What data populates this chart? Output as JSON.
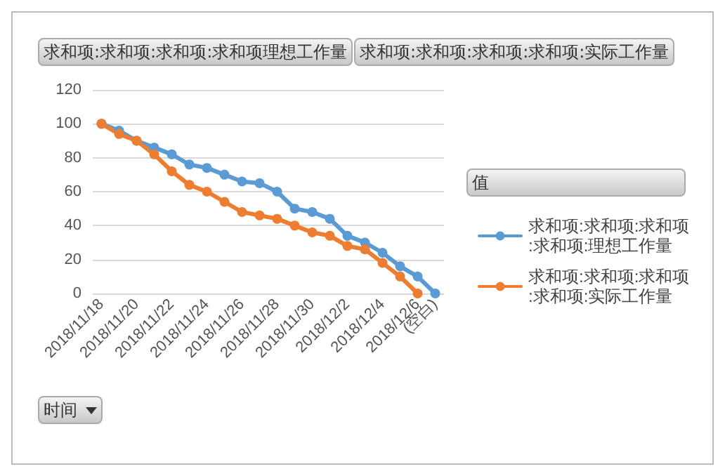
{
  "chart_data": {
    "type": "line",
    "xlabel": "时间",
    "legend_title": "值",
    "annotations": [
      "求和项:求和项:求和项:求和项理想工作量",
      "求和项:求和项:求和项:求和项:实际工作量"
    ],
    "categories": [
      "2018/11/18",
      null,
      "2018/11/20",
      null,
      "2018/11/22",
      null,
      "2018/11/24",
      null,
      "2018/11/26",
      null,
      "2018/11/28",
      null,
      "2018/11/30",
      null,
      "2018/12/2",
      null,
      "2018/12/4",
      null,
      "2018/12/6",
      "(空白)"
    ],
    "series": [
      {
        "name": "求和项:求和项:求和项:求和项:理想工作量",
        "color": "#5b9bd5",
        "values": [
          100,
          96,
          90,
          86,
          82,
          76,
          74,
          70,
          66,
          65,
          60,
          50,
          48,
          44,
          34,
          30,
          24,
          16,
          10,
          0
        ]
      },
      {
        "name": "求和项:求和项:求和项:求和项:实际工作量",
        "color": "#ed7d31",
        "values": [
          100,
          94,
          90,
          82,
          72,
          64,
          60,
          54,
          48,
          46,
          44,
          40,
          36,
          34,
          28,
          26,
          18,
          10,
          0,
          null
        ]
      }
    ],
    "ylim": [
      0,
      120
    ],
    "yticks": [
      0,
      20,
      40,
      60,
      80,
      100,
      120
    ],
    "grid": "y",
    "legend": "right",
    "marker": "circle",
    "line_style": "solid"
  }
}
